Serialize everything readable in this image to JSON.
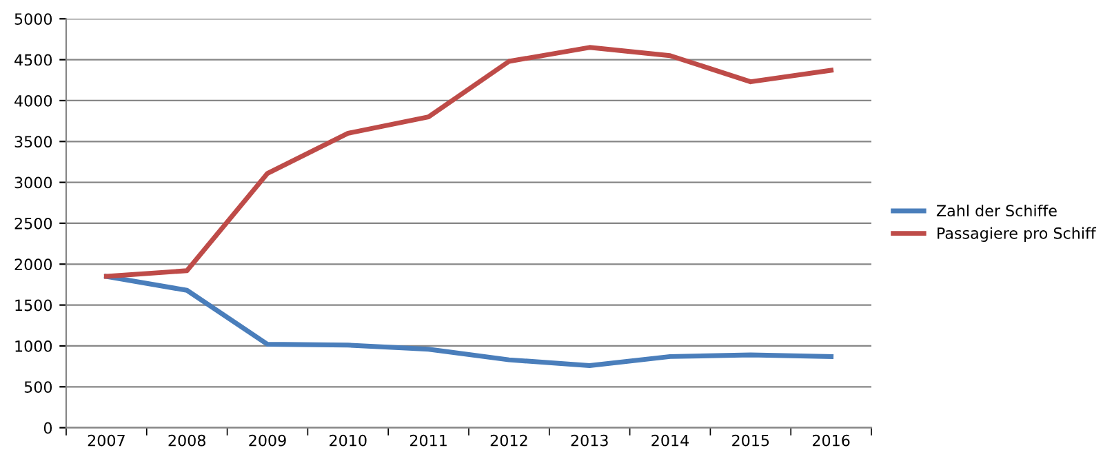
{
  "chart_data": {
    "type": "line",
    "categories": [
      "2007",
      "2008",
      "2009",
      "2010",
      "2011",
      "2012",
      "2013",
      "2014",
      "2015",
      "2016"
    ],
    "series": [
      {
        "name": "Zahl der Schiffe",
        "color": "#4a7ebb",
        "values": [
          1850,
          1680,
          1020,
          1010,
          960,
          830,
          760,
          870,
          890,
          870
        ]
      },
      {
        "name": "Passagiere pro Schiff",
        "color": "#be4b48",
        "values": [
          1850,
          1920,
          3110,
          3600,
          3800,
          4480,
          4650,
          4550,
          4230,
          4370
        ]
      }
    ],
    "ylim": [
      0,
      5000
    ],
    "yticks": [
      0,
      500,
      1000,
      1500,
      2000,
      2500,
      3000,
      3500,
      4000,
      4500,
      5000
    ],
    "grid": "y",
    "legend": "right",
    "marker": "none",
    "line_style": "solid"
  }
}
